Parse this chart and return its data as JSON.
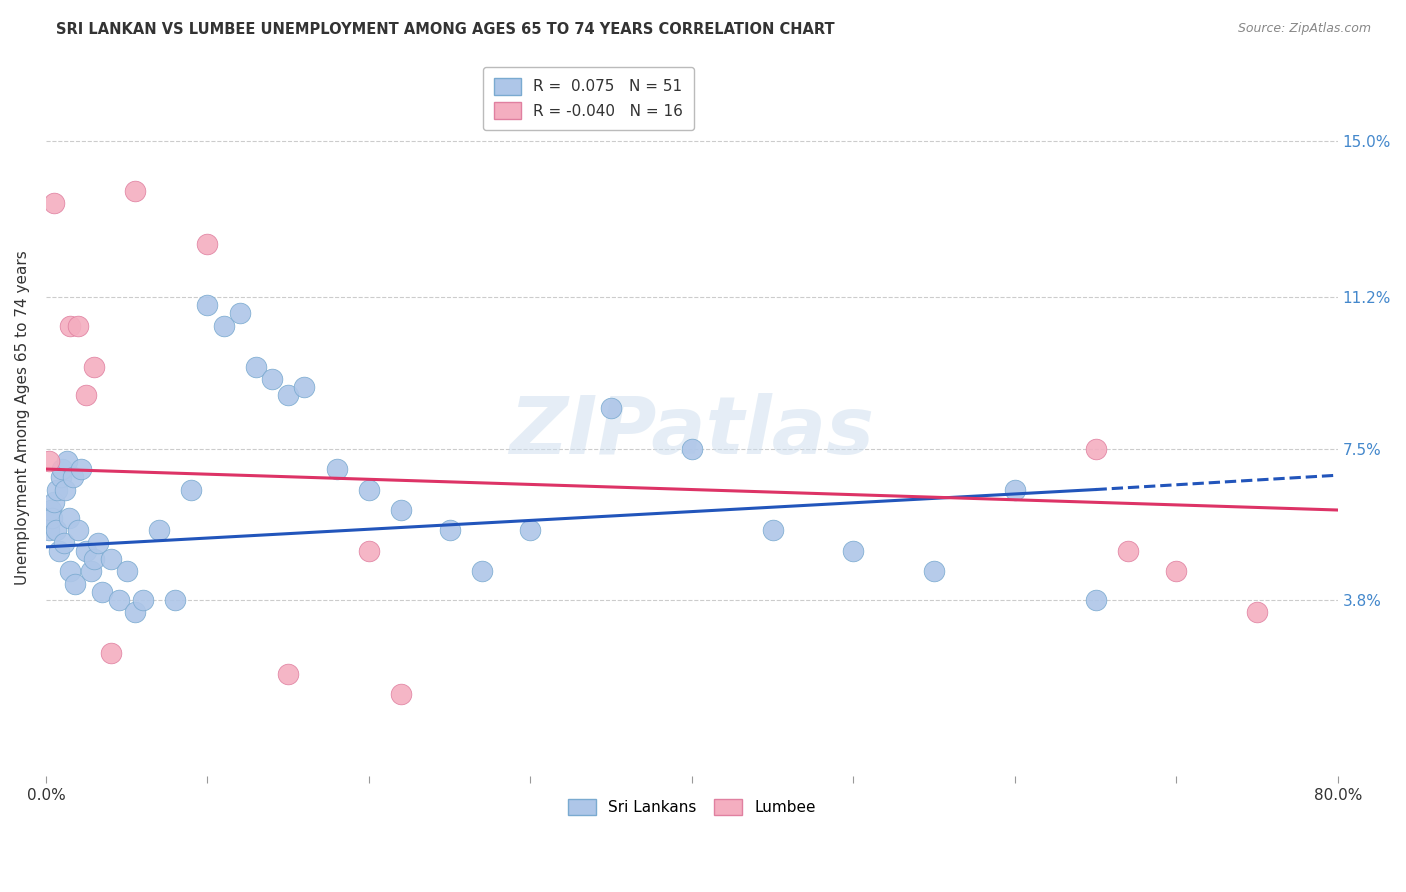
{
  "title": "SRI LANKAN VS LUMBEE UNEMPLOYMENT AMONG AGES 65 TO 74 YEARS CORRELATION CHART",
  "source": "Source: ZipAtlas.com",
  "ylabel": "Unemployment Among Ages 65 to 74 years",
  "xlim": [
    0.0,
    80.0
  ],
  "ylim": [
    -0.5,
    17.0
  ],
  "yticks": [
    3.8,
    7.5,
    11.2,
    15.0
  ],
  "xticks": [
    0.0,
    10.0,
    20.0,
    30.0,
    40.0,
    50.0,
    60.0,
    70.0,
    80.0
  ],
  "sri_lankan_R": 0.075,
  "sri_lankan_N": 51,
  "lumbee_R": -0.04,
  "lumbee_N": 16,
  "sri_lankan_color": "#aec6e8",
  "lumbee_color": "#f4aec0",
  "sri_lankan_edge": "#7aaad0",
  "lumbee_edge": "#e080a0",
  "sri_lankan_line_color": "#2255bb",
  "lumbee_line_color": "#dd3366",
  "background_color": "#ffffff",
  "grid_color": "#cccccc",
  "title_color": "#333333",
  "watermark": "ZIPatlas",
  "sri_lankans_x": [
    0.2,
    0.3,
    0.4,
    0.5,
    0.6,
    0.7,
    0.8,
    0.9,
    1.0,
    1.1,
    1.2,
    1.3,
    1.4,
    1.5,
    1.7,
    1.8,
    2.0,
    2.2,
    2.5,
    2.8,
    3.0,
    3.2,
    3.5,
    4.0,
    4.5,
    5.0,
    5.5,
    6.0,
    7.0,
    8.0,
    9.0,
    10.0,
    11.0,
    12.0,
    13.0,
    14.0,
    15.0,
    16.0,
    18.0,
    20.0,
    22.0,
    25.0,
    27.0,
    30.0,
    35.0,
    40.0,
    45.0,
    50.0,
    55.0,
    60.0,
    65.0
  ],
  "sri_lankans_y": [
    5.5,
    6.0,
    5.8,
    6.2,
    5.5,
    6.5,
    5.0,
    6.8,
    7.0,
    5.2,
    6.5,
    7.2,
    5.8,
    4.5,
    6.8,
    4.2,
    5.5,
    7.0,
    5.0,
    4.5,
    4.8,
    5.2,
    4.0,
    4.8,
    3.8,
    4.5,
    3.5,
    3.8,
    5.5,
    3.8,
    6.5,
    11.0,
    10.5,
    10.8,
    9.5,
    9.2,
    8.8,
    9.0,
    7.0,
    6.5,
    6.0,
    5.5,
    4.5,
    5.5,
    8.5,
    7.5,
    5.5,
    5.0,
    4.5,
    6.5,
    3.8
  ],
  "lumbee_x": [
    0.2,
    0.5,
    1.5,
    2.0,
    2.5,
    3.0,
    4.0,
    5.5,
    10.0,
    15.0,
    20.0,
    22.0,
    65.0,
    67.0,
    70.0,
    75.0
  ],
  "lumbee_y": [
    7.2,
    13.5,
    10.5,
    10.5,
    8.8,
    9.5,
    2.5,
    13.8,
    12.5,
    2.0,
    5.0,
    1.5,
    7.5,
    5.0,
    4.5,
    3.5
  ],
  "sri_lankan_line_x0": 0.0,
  "sri_lankan_line_y0": 5.1,
  "sri_lankan_line_x1": 65.0,
  "sri_lankan_line_y1": 6.5,
  "sri_lankan_dash_x0": 65.0,
  "sri_lankan_dash_y0": 6.5,
  "sri_lankan_dash_x1": 80.0,
  "sri_lankan_dash_y1": 6.85,
  "lumbee_line_x0": 0.0,
  "lumbee_line_y0": 7.0,
  "lumbee_line_x1": 80.0,
  "lumbee_line_y1": 6.0
}
